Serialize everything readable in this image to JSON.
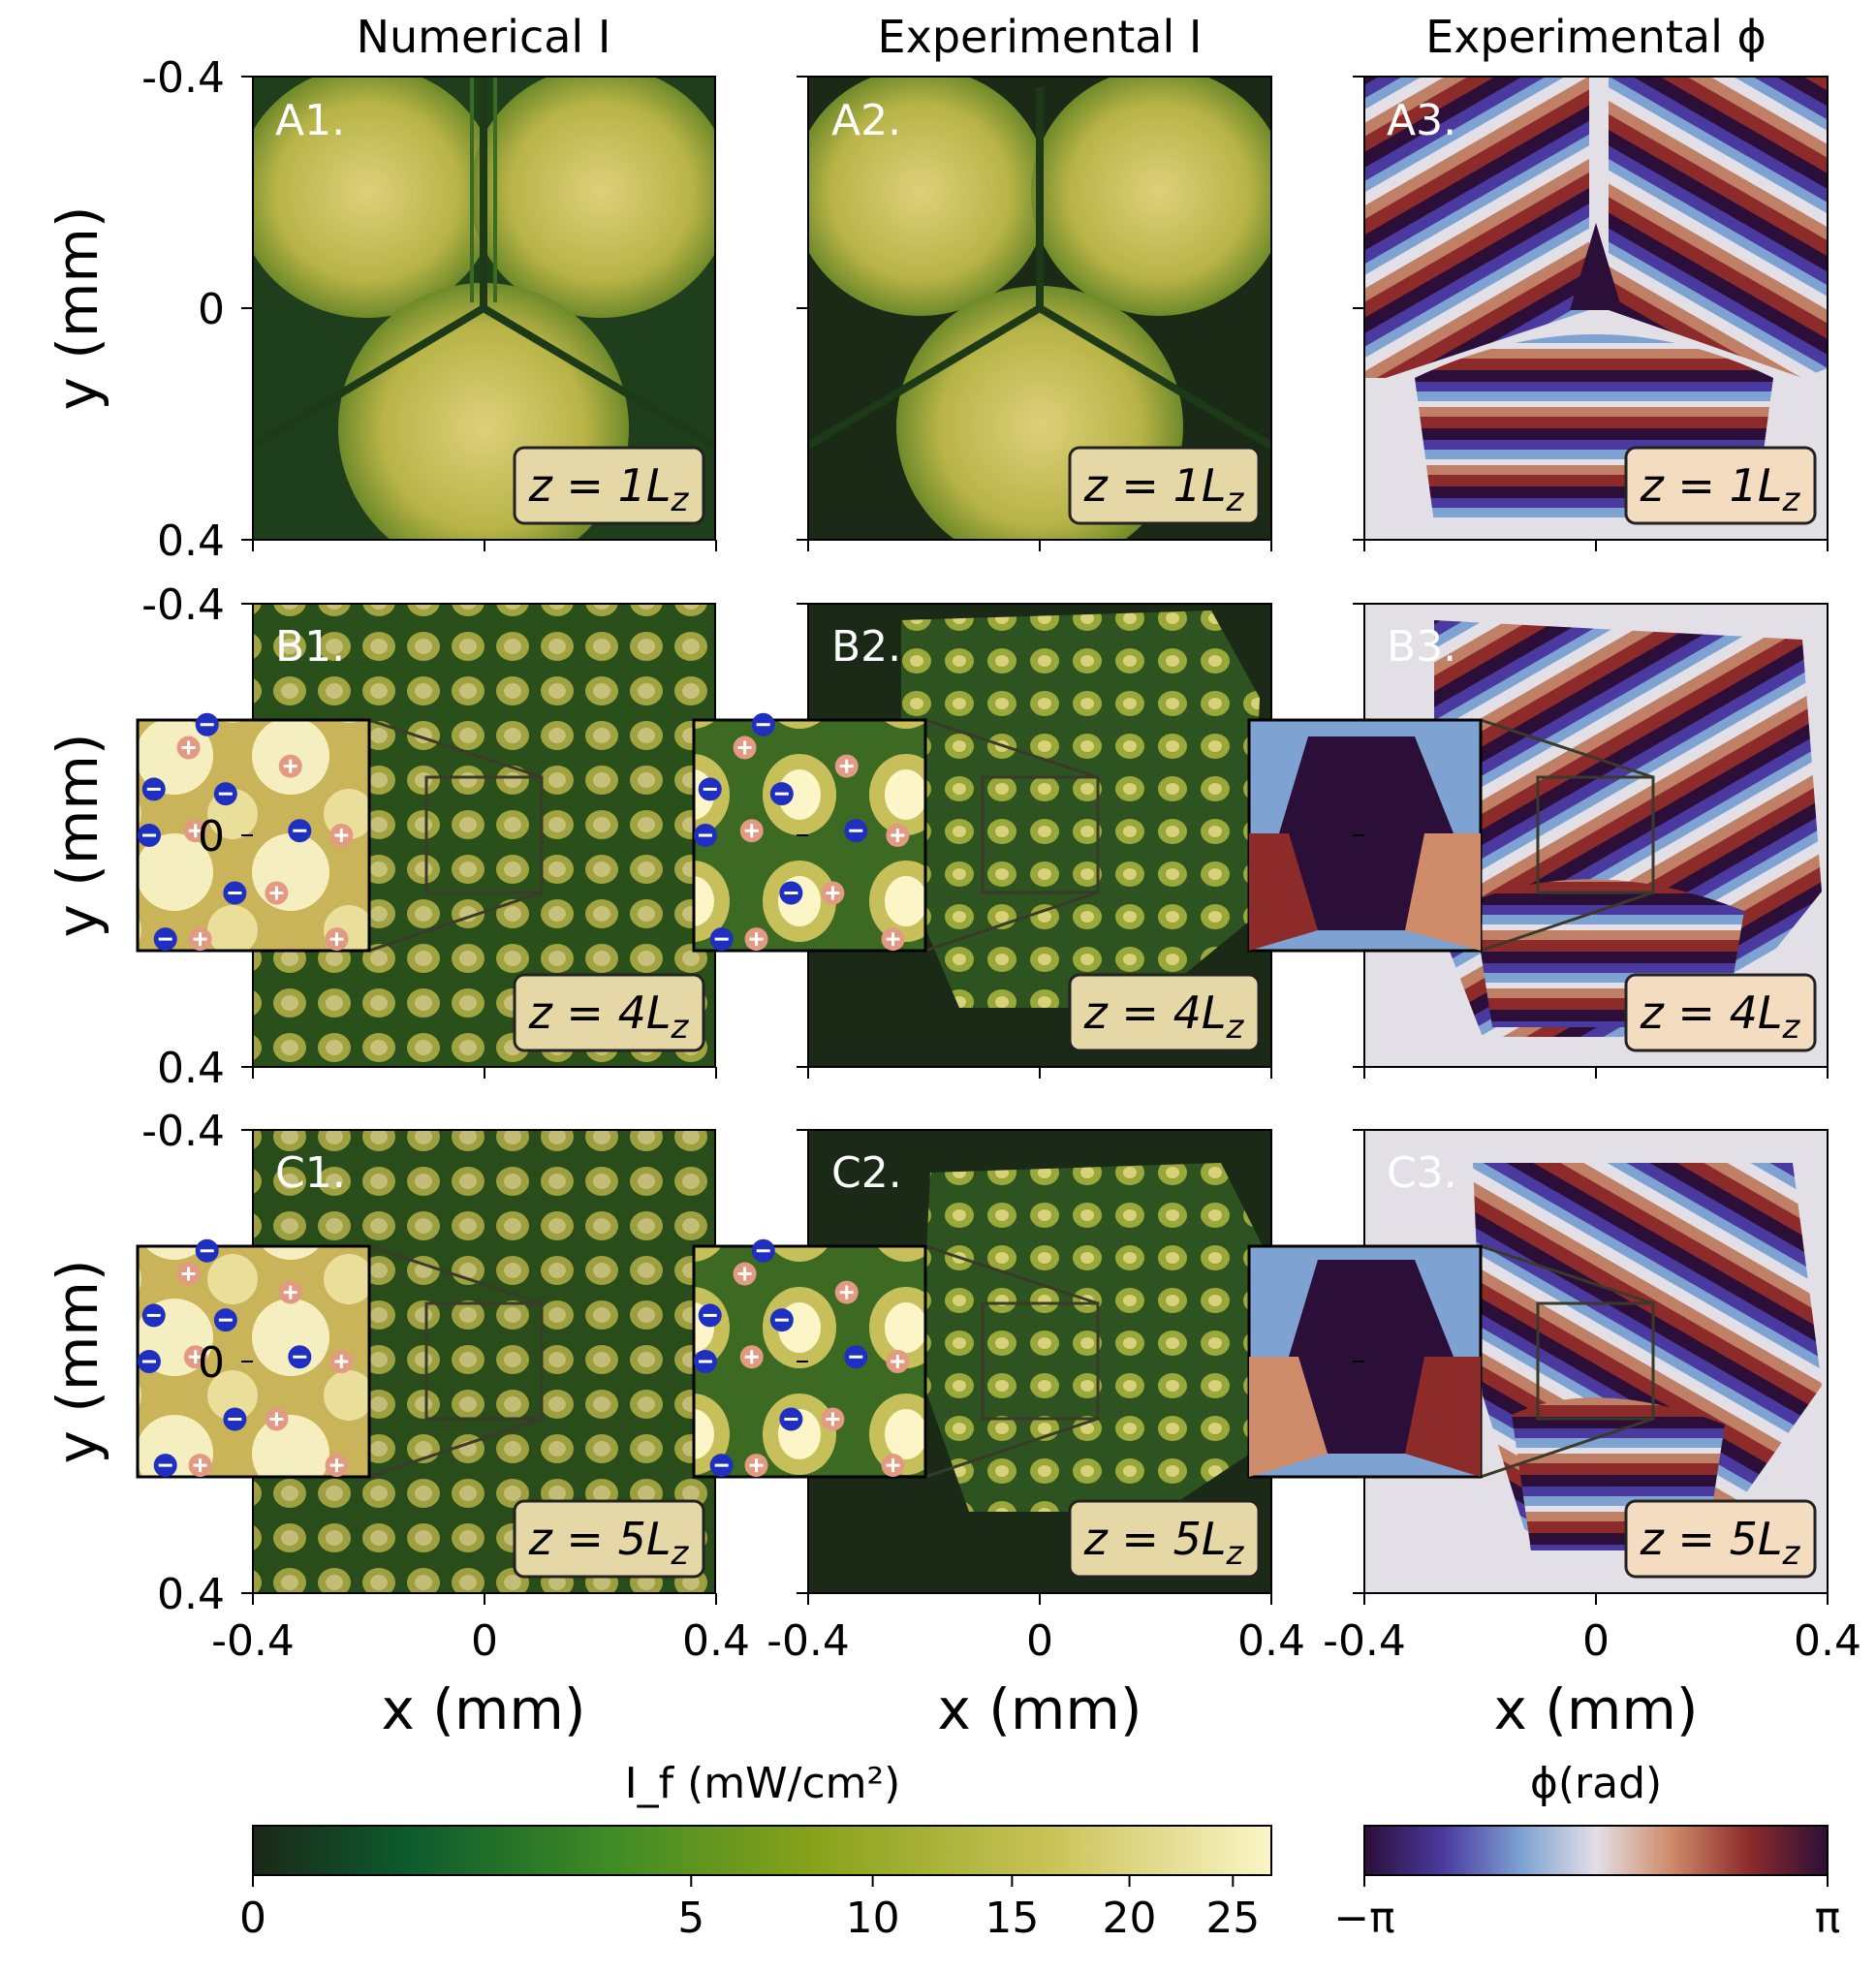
{
  "columns": [
    {
      "title": "Numerical I"
    },
    {
      "title": "Experimental I"
    },
    {
      "title": "Experimental ϕ"
    }
  ],
  "rows": [
    {
      "panels": [
        "A1.",
        "A2.",
        "A3."
      ],
      "z_label": "z = 1L_z"
    },
    {
      "panels": [
        "B1.",
        "B2.",
        "B3."
      ],
      "z_label": "z = 4L_z"
    },
    {
      "panels": [
        "C1.",
        "C2.",
        "C3."
      ],
      "z_label": "z = 5L_z"
    }
  ],
  "axes": {
    "ylabel": "y (mm)",
    "xlabel": "x (mm)",
    "ytick_labels": [
      "-0.4",
      "0",
      "0.4"
    ],
    "xtick_labels": [
      "-0.4",
      "0",
      "0.4"
    ]
  },
  "colorbar_intensity": {
    "label": "I_f (mW/cm²)",
    "ticks": [
      0,
      5,
      10,
      15,
      20,
      25
    ],
    "colors": [
      "#1b2818",
      "#0d5a2e",
      "#3f8b25",
      "#87a21a",
      "#c9c256",
      "#fbf5c8"
    ]
  },
  "colorbar_phase": {
    "label": "ϕ(rad)",
    "ticks": [
      "−π",
      "π"
    ],
    "colors": [
      "#2b0f38",
      "#4a3aa0",
      "#7ea2d2",
      "#e3dfe6",
      "#cf8c6b",
      "#8d2b2b",
      "#2b0f38"
    ]
  },
  "chart_data": {
    "type": "heatmap",
    "grid": "3x3",
    "x_range_mm": [
      -0.4,
      0.4
    ],
    "y_range_mm": [
      -0.4,
      0.4
    ],
    "y_axis_inverted": true,
    "intensity_range_mW_cm2": [
      0,
      27
    ],
    "phase_range_rad": [
      "-π",
      "π"
    ],
    "z_values_Lz": [
      1,
      4,
      5
    ],
    "insets": "rows B and C show zoomed regions x,y in [-0.1, 0.1] mm with +/- vortex markers"
  }
}
